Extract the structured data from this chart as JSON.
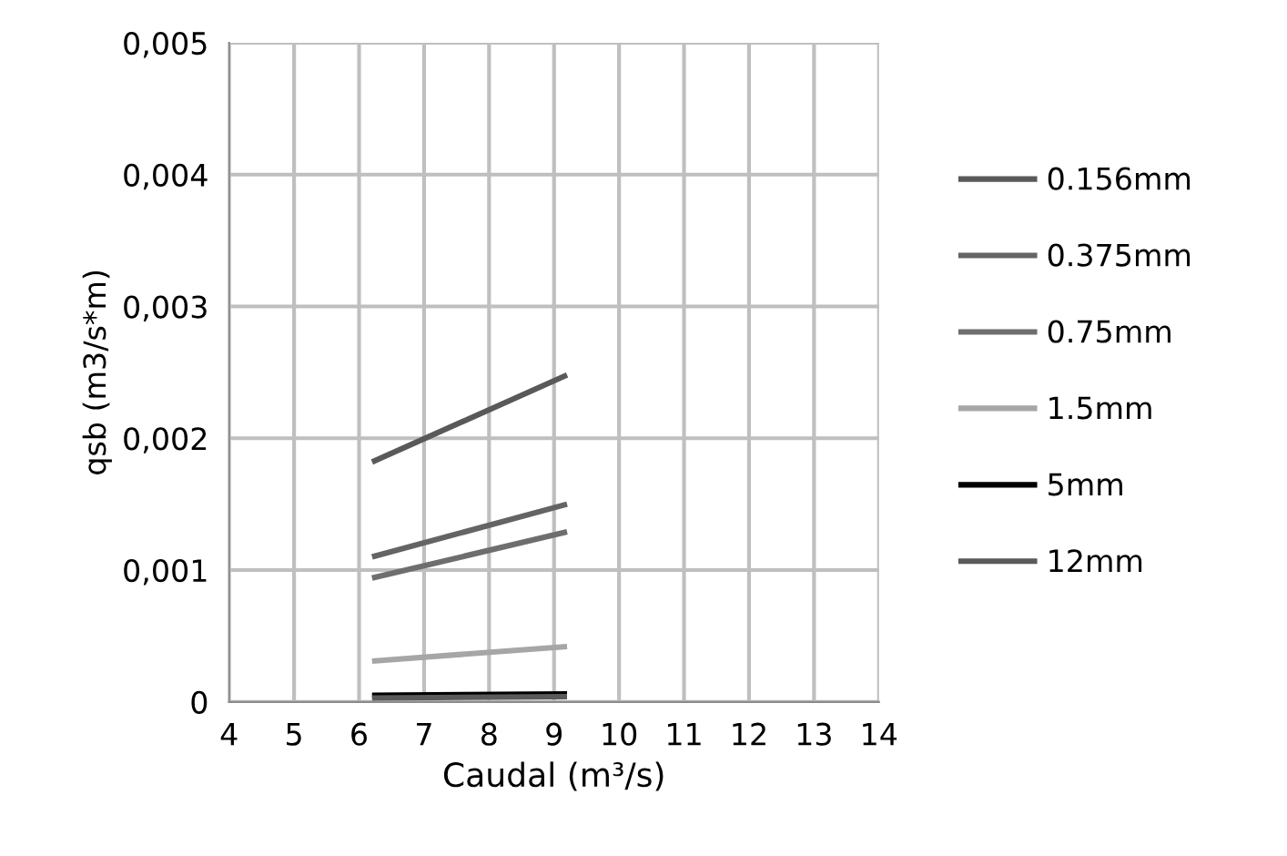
{
  "chart_data": {
    "type": "line",
    "xlabel": "Caudal (m³/s)",
    "ylabel": "qsb (m3/s*m)",
    "x": [
      6.2,
      9.2
    ],
    "series": [
      {
        "name": "0.156mm",
        "color": "#595959",
        "values": [
          0.00182,
          0.00248
        ]
      },
      {
        "name": "0.375mm",
        "color": "#646464",
        "values": [
          0.0011,
          0.0015
        ]
      },
      {
        "name": "0.75mm",
        "color": "#6e6e6e",
        "values": [
          0.00094,
          0.00129
        ]
      },
      {
        "name": "1.5mm",
        "color": "#a6a6a6",
        "values": [
          0.00031,
          0.00042
        ]
      },
      {
        "name": "5mm",
        "color": "#000000",
        "values": [
          5e-05,
          6e-05
        ]
      },
      {
        "name": "12mm",
        "color": "#5a5a5a",
        "values": [
          3e-05,
          4e-05
        ]
      }
    ],
    "xlim": [
      4,
      14
    ],
    "xticks": [
      4,
      5,
      6,
      7,
      8,
      9,
      10,
      11,
      12,
      13,
      14
    ],
    "ylim": [
      0,
      0.005
    ],
    "yticks": [
      0,
      {
        "value": 0.001,
        "label": "0,001"
      },
      {
        "value": 0.002,
        "label": "0,002"
      },
      {
        "value": 0.003,
        "label": "0,003"
      },
      {
        "value": 0.004,
        "label": "0,004"
      },
      {
        "value": 0.005,
        "label": "0,005"
      }
    ],
    "grid": true,
    "legend": "right",
    "marker": "none",
    "line_style": "solid"
  }
}
